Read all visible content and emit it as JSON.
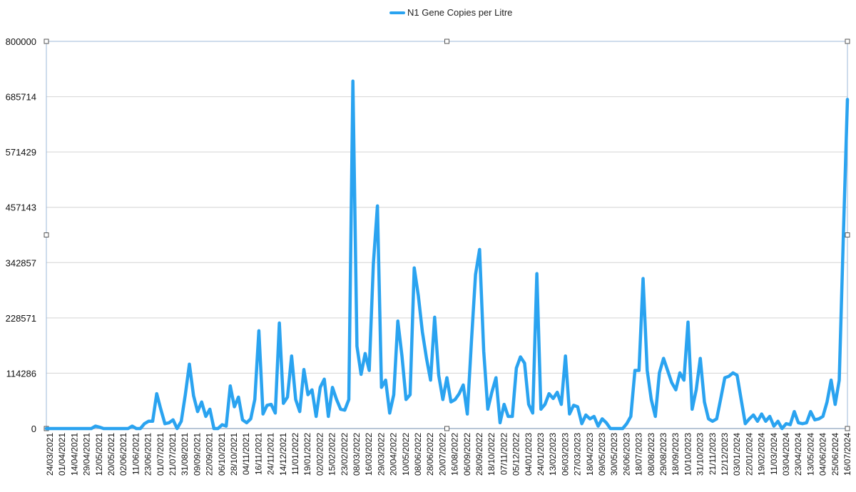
{
  "chart_data": {
    "type": "line",
    "title": "",
    "xlabel": "",
    "ylabel": "",
    "ylim": [
      0,
      800000
    ],
    "yticks": [
      "0",
      "114286",
      "228571",
      "342857",
      "457143",
      "571429",
      "685714",
      "800000"
    ],
    "grid": "horizontal",
    "legend_position": "top-center",
    "series_color": "#2aa3f0",
    "xticks": [
      "24/03/2021",
      "01/04/2021",
      "14/04/2021",
      "29/04/2021",
      "12/05/2021",
      "20/05/2021",
      "02/06/2021",
      "11/06/2021",
      "23/06/2021",
      "01/07/2021",
      "21/07/2021",
      "31/08/2021",
      "09/09/2021",
      "22/09/2021",
      "06/10/2021",
      "28/10/2021",
      "04/11/2021",
      "16/11/2021",
      "24/11/2021",
      "14/12/2021",
      "11/01/2022",
      "19/01/2022",
      "02/02/2022",
      "15/02/2022",
      "23/02/2022",
      "08/03/2022",
      "16/03/2022",
      "29/03/2022",
      "20/04/2022",
      "10/05/2022",
      "08/06/2022",
      "28/06/2022",
      "20/07/2022",
      "16/08/2022",
      "06/09/2022",
      "28/09/2022",
      "18/10/2022",
      "07/11/2022",
      "05/12/2022",
      "04/01/2023",
      "24/01/2023",
      "13/02/2023",
      "06/03/2023",
      "27/03/2023",
      "18/04/2023",
      "09/05/2023",
      "30/05/2023",
      "26/06/2023",
      "18/07/2023",
      "08/08/2023",
      "29/08/2023",
      "18/09/2023",
      "10/10/2023",
      "31/10/2023",
      "21/11/2023",
      "12/12/2023",
      "03/01/2024",
      "22/01/2024",
      "19/02/2024",
      "11/03/2024",
      "03/04/2024",
      "23/04/2024",
      "13/05/2024",
      "04/06/2024",
      "25/06/2024",
      "16/07/2024"
    ],
    "series": [
      {
        "name": "N1 Gene Copies per Litre",
        "values": [
          0,
          0,
          0,
          0,
          0,
          0,
          0,
          0,
          0,
          0,
          0,
          0,
          5000,
          3000,
          0,
          0,
          0,
          0,
          0,
          0,
          0,
          5000,
          0,
          0,
          10000,
          15000,
          15000,
          72000,
          40000,
          10000,
          12000,
          18000,
          0,
          15000,
          70000,
          133000,
          68000,
          35000,
          55000,
          25000,
          40000,
          0,
          0,
          8000,
          5000,
          88000,
          45000,
          65000,
          18000,
          12000,
          20000,
          60000,
          202000,
          30000,
          48000,
          50000,
          32000,
          218000,
          52000,
          65000,
          150000,
          60000,
          35000,
          122000,
          70000,
          80000,
          25000,
          85000,
          102000,
          25000,
          85000,
          60000,
          40000,
          38000,
          60000,
          718000,
          170000,
          112000,
          155000,
          120000,
          340000,
          460000,
          85000,
          100000,
          32000,
          70000,
          222000,
          150000,
          60000,
          70000,
          332000,
          275000,
          200000,
          145000,
          100000,
          230000,
          110000,
          60000,
          105000,
          55000,
          60000,
          72000,
          90000,
          30000,
          180000,
          318000,
          370000,
          160000,
          40000,
          75000,
          105000,
          12000,
          50000,
          25000,
          25000,
          125000,
          148000,
          135000,
          50000,
          32000,
          320000,
          40000,
          50000,
          72000,
          62000,
          75000,
          50000,
          150000,
          30000,
          48000,
          45000,
          10000,
          28000,
          20000,
          25000,
          5000,
          20000,
          12000,
          0,
          0,
          0,
          0,
          10000,
          25000,
          120000,
          120000,
          310000,
          120000,
          60000,
          25000,
          115000,
          145000,
          120000,
          95000,
          80000,
          115000,
          100000,
          220000,
          40000,
          80000,
          145000,
          55000,
          20000,
          15000,
          20000,
          62000,
          105000,
          108000,
          115000,
          110000,
          60000,
          10000,
          20000,
          28000,
          15000,
          30000,
          15000,
          25000,
          5000,
          15000,
          0,
          10000,
          8000,
          35000,
          12000,
          10000,
          12000,
          35000,
          18000,
          20000,
          25000,
          55000,
          100000,
          50000,
          100000,
          400000,
          680000
        ]
      }
    ]
  }
}
